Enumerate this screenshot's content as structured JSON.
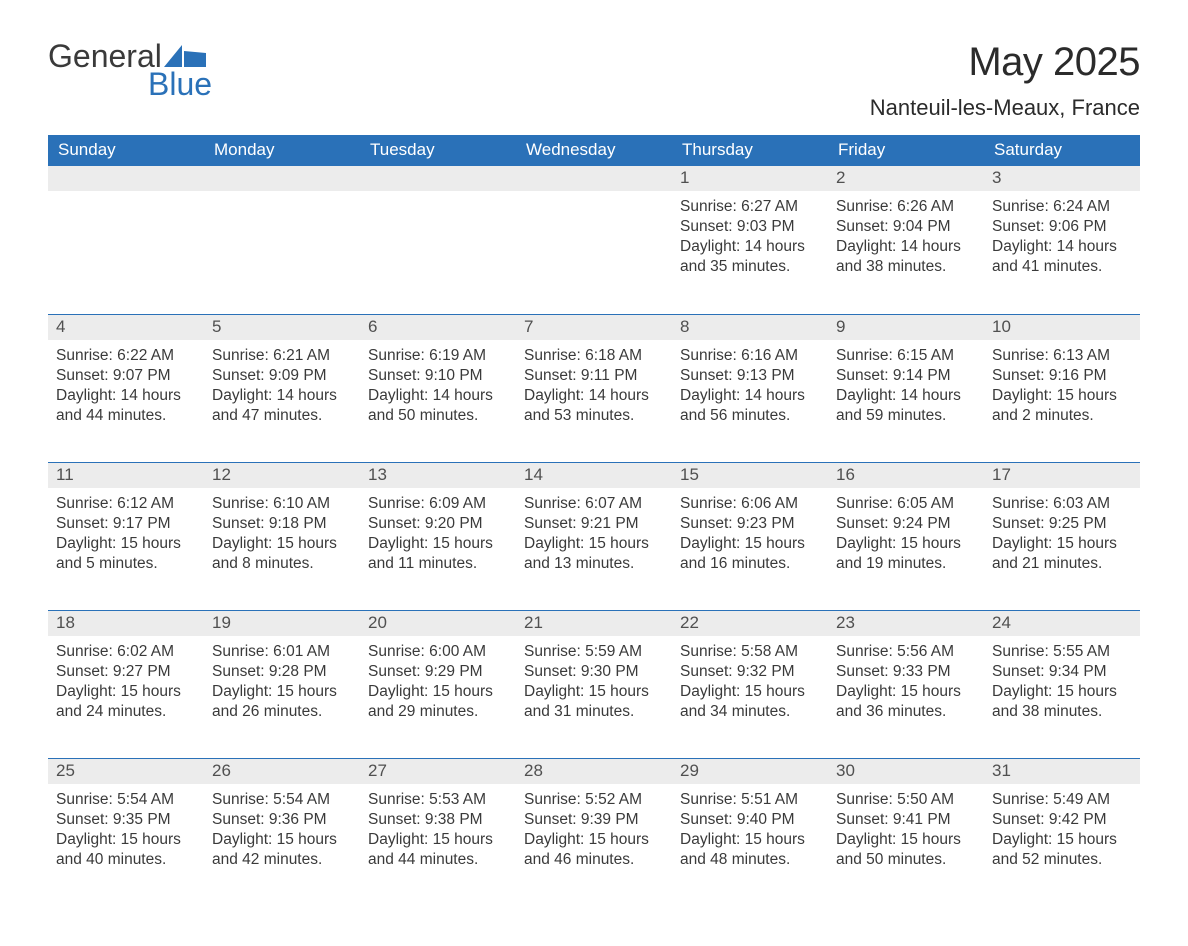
{
  "logo": {
    "word1": "General",
    "word2": "Blue"
  },
  "title": "May 2025",
  "location": "Nanteuil-les-Meaux, France",
  "colors": {
    "header_bg": "#2a71b8",
    "header_text": "#ffffff",
    "daynum_bg": "#ececec",
    "daynum_text": "#505050",
    "body_text": "#3a3a3a",
    "row_border": "#2a71b8",
    "logo_gray": "#3a3a3a",
    "logo_blue": "#2a71b8",
    "page_bg": "#ffffff"
  },
  "typography": {
    "title_fontsize": 40,
    "subtitle_fontsize": 22,
    "header_fontsize": 17,
    "daynum_fontsize": 17,
    "body_fontsize": 15.5,
    "font_family": "Arial"
  },
  "day_headers": [
    "Sunday",
    "Monday",
    "Tuesday",
    "Wednesday",
    "Thursday",
    "Friday",
    "Saturday"
  ],
  "weeks": [
    [
      null,
      null,
      null,
      null,
      {
        "n": "1",
        "sr": "Sunrise: 6:27 AM",
        "ss": "Sunset: 9:03 PM",
        "dl": "Daylight: 14 hours and 35 minutes."
      },
      {
        "n": "2",
        "sr": "Sunrise: 6:26 AM",
        "ss": "Sunset: 9:04 PM",
        "dl": "Daylight: 14 hours and 38 minutes."
      },
      {
        "n": "3",
        "sr": "Sunrise: 6:24 AM",
        "ss": "Sunset: 9:06 PM",
        "dl": "Daylight: 14 hours and 41 minutes."
      }
    ],
    [
      {
        "n": "4",
        "sr": "Sunrise: 6:22 AM",
        "ss": "Sunset: 9:07 PM",
        "dl": "Daylight: 14 hours and 44 minutes."
      },
      {
        "n": "5",
        "sr": "Sunrise: 6:21 AM",
        "ss": "Sunset: 9:09 PM",
        "dl": "Daylight: 14 hours and 47 minutes."
      },
      {
        "n": "6",
        "sr": "Sunrise: 6:19 AM",
        "ss": "Sunset: 9:10 PM",
        "dl": "Daylight: 14 hours and 50 minutes."
      },
      {
        "n": "7",
        "sr": "Sunrise: 6:18 AM",
        "ss": "Sunset: 9:11 PM",
        "dl": "Daylight: 14 hours and 53 minutes."
      },
      {
        "n": "8",
        "sr": "Sunrise: 6:16 AM",
        "ss": "Sunset: 9:13 PM",
        "dl": "Daylight: 14 hours and 56 minutes."
      },
      {
        "n": "9",
        "sr": "Sunrise: 6:15 AM",
        "ss": "Sunset: 9:14 PM",
        "dl": "Daylight: 14 hours and 59 minutes."
      },
      {
        "n": "10",
        "sr": "Sunrise: 6:13 AM",
        "ss": "Sunset: 9:16 PM",
        "dl": "Daylight: 15 hours and 2 minutes."
      }
    ],
    [
      {
        "n": "11",
        "sr": "Sunrise: 6:12 AM",
        "ss": "Sunset: 9:17 PM",
        "dl": "Daylight: 15 hours and 5 minutes."
      },
      {
        "n": "12",
        "sr": "Sunrise: 6:10 AM",
        "ss": "Sunset: 9:18 PM",
        "dl": "Daylight: 15 hours and 8 minutes."
      },
      {
        "n": "13",
        "sr": "Sunrise: 6:09 AM",
        "ss": "Sunset: 9:20 PM",
        "dl": "Daylight: 15 hours and 11 minutes."
      },
      {
        "n": "14",
        "sr": "Sunrise: 6:07 AM",
        "ss": "Sunset: 9:21 PM",
        "dl": "Daylight: 15 hours and 13 minutes."
      },
      {
        "n": "15",
        "sr": "Sunrise: 6:06 AM",
        "ss": "Sunset: 9:23 PM",
        "dl": "Daylight: 15 hours and 16 minutes."
      },
      {
        "n": "16",
        "sr": "Sunrise: 6:05 AM",
        "ss": "Sunset: 9:24 PM",
        "dl": "Daylight: 15 hours and 19 minutes."
      },
      {
        "n": "17",
        "sr": "Sunrise: 6:03 AM",
        "ss": "Sunset: 9:25 PM",
        "dl": "Daylight: 15 hours and 21 minutes."
      }
    ],
    [
      {
        "n": "18",
        "sr": "Sunrise: 6:02 AM",
        "ss": "Sunset: 9:27 PM",
        "dl": "Daylight: 15 hours and 24 minutes."
      },
      {
        "n": "19",
        "sr": "Sunrise: 6:01 AM",
        "ss": "Sunset: 9:28 PM",
        "dl": "Daylight: 15 hours and 26 minutes."
      },
      {
        "n": "20",
        "sr": "Sunrise: 6:00 AM",
        "ss": "Sunset: 9:29 PM",
        "dl": "Daylight: 15 hours and 29 minutes."
      },
      {
        "n": "21",
        "sr": "Sunrise: 5:59 AM",
        "ss": "Sunset: 9:30 PM",
        "dl": "Daylight: 15 hours and 31 minutes."
      },
      {
        "n": "22",
        "sr": "Sunrise: 5:58 AM",
        "ss": "Sunset: 9:32 PM",
        "dl": "Daylight: 15 hours and 34 minutes."
      },
      {
        "n": "23",
        "sr": "Sunrise: 5:56 AM",
        "ss": "Sunset: 9:33 PM",
        "dl": "Daylight: 15 hours and 36 minutes."
      },
      {
        "n": "24",
        "sr": "Sunrise: 5:55 AM",
        "ss": "Sunset: 9:34 PM",
        "dl": "Daylight: 15 hours and 38 minutes."
      }
    ],
    [
      {
        "n": "25",
        "sr": "Sunrise: 5:54 AM",
        "ss": "Sunset: 9:35 PM",
        "dl": "Daylight: 15 hours and 40 minutes."
      },
      {
        "n": "26",
        "sr": "Sunrise: 5:54 AM",
        "ss": "Sunset: 9:36 PM",
        "dl": "Daylight: 15 hours and 42 minutes."
      },
      {
        "n": "27",
        "sr": "Sunrise: 5:53 AM",
        "ss": "Sunset: 9:38 PM",
        "dl": "Daylight: 15 hours and 44 minutes."
      },
      {
        "n": "28",
        "sr": "Sunrise: 5:52 AM",
        "ss": "Sunset: 9:39 PM",
        "dl": "Daylight: 15 hours and 46 minutes."
      },
      {
        "n": "29",
        "sr": "Sunrise: 5:51 AM",
        "ss": "Sunset: 9:40 PM",
        "dl": "Daylight: 15 hours and 48 minutes."
      },
      {
        "n": "30",
        "sr": "Sunrise: 5:50 AM",
        "ss": "Sunset: 9:41 PM",
        "dl": "Daylight: 15 hours and 50 minutes."
      },
      {
        "n": "31",
        "sr": "Sunrise: 5:49 AM",
        "ss": "Sunset: 9:42 PM",
        "dl": "Daylight: 15 hours and 52 minutes."
      }
    ]
  ]
}
